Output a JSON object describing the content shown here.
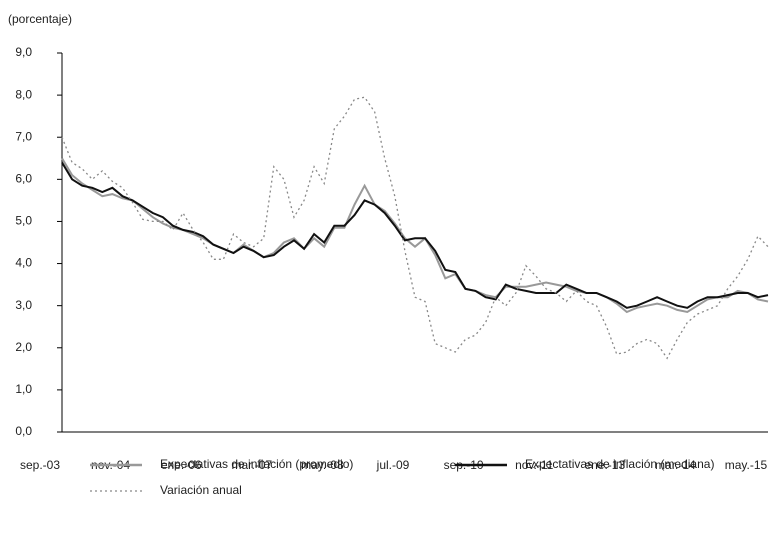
{
  "chart_data": {
    "type": "line",
    "y_label": "(porcentaje)",
    "categories": [
      "sep.-03",
      null,
      null,
      null,
      null,
      null,
      null,
      "nov.-04",
      null,
      null,
      null,
      null,
      null,
      null,
      "ene.-06",
      null,
      null,
      null,
      null,
      null,
      null,
      "mar.-07",
      null,
      null,
      null,
      null,
      null,
      null,
      "may.-08",
      null,
      null,
      null,
      null,
      null,
      null,
      "jul.-09",
      null,
      null,
      null,
      null,
      null,
      null,
      "sep.-10",
      null,
      null,
      null,
      null,
      null,
      null,
      "nov.-11",
      null,
      null,
      null,
      null,
      null,
      null,
      "ene.-13",
      null,
      null,
      null,
      null,
      null,
      null,
      "mar.-14",
      null,
      null,
      null,
      null,
      null,
      null,
      "may.-15"
    ],
    "series": [
      {
        "name": "Expectativas de inflación (promedio)",
        "color": "#999999",
        "line_style": "solid",
        "values": [
          6.5,
          6.1,
          5.9,
          5.75,
          5.6,
          5.65,
          5.55,
          5.5,
          5.3,
          5.1,
          4.95,
          4.85,
          4.8,
          4.7,
          4.6,
          4.45,
          4.35,
          4.25,
          4.45,
          4.3,
          4.15,
          4.25,
          4.5,
          4.6,
          4.35,
          4.6,
          4.4,
          4.85,
          4.85,
          5.4,
          5.85,
          5.4,
          5.25,
          4.95,
          4.6,
          4.4,
          4.6,
          4.2,
          3.65,
          3.75,
          3.4,
          3.35,
          3.25,
          3.2,
          3.45,
          3.45,
          3.45,
          3.5,
          3.55,
          3.5,
          3.45,
          3.35,
          3.3,
          3.3,
          3.2,
          3.05,
          2.85,
          2.95,
          3.0,
          3.05,
          3.0,
          2.9,
          2.85,
          3.0,
          3.15,
          3.2,
          3.2,
          3.35,
          3.3,
          3.15,
          3.1
        ]
      },
      {
        "name": "Expectativas de inflación (mediana)",
        "color": "#111111",
        "line_style": "solid",
        "values": [
          6.4,
          6.0,
          5.85,
          5.8,
          5.7,
          5.8,
          5.6,
          5.5,
          5.35,
          5.2,
          5.1,
          4.9,
          4.8,
          4.75,
          4.65,
          4.45,
          4.35,
          4.25,
          4.4,
          4.3,
          4.15,
          4.2,
          4.4,
          4.55,
          4.35,
          4.7,
          4.5,
          4.9,
          4.9,
          5.15,
          5.5,
          5.4,
          5.2,
          4.9,
          4.55,
          4.6,
          4.6,
          4.3,
          3.85,
          3.8,
          3.4,
          3.35,
          3.2,
          3.15,
          3.5,
          3.4,
          3.35,
          3.3,
          3.3,
          3.3,
          3.5,
          3.4,
          3.3,
          3.3,
          3.2,
          3.1,
          2.95,
          3.0,
          3.1,
          3.2,
          3.1,
          3.0,
          2.95,
          3.1,
          3.2,
          3.2,
          3.25,
          3.3,
          3.3,
          3.2,
          3.25
        ]
      },
      {
        "name": "Variación anual",
        "color": "#888888",
        "line_style": "dotted",
        "values": [
          7.0,
          6.4,
          6.25,
          6.0,
          6.2,
          5.95,
          5.8,
          5.45,
          5.05,
          5.0,
          5.0,
          4.8,
          5.2,
          4.8,
          4.5,
          4.1,
          4.1,
          4.7,
          4.5,
          4.4,
          4.6,
          6.3,
          6.0,
          5.1,
          5.5,
          6.3,
          5.9,
          7.2,
          7.5,
          7.9,
          7.95,
          7.6,
          6.5,
          5.6,
          4.3,
          3.2,
          3.1,
          2.1,
          2.0,
          1.9,
          2.2,
          2.3,
          2.6,
          3.2,
          3.0,
          3.3,
          3.95,
          3.7,
          3.4,
          3.3,
          3.1,
          3.35,
          3.1,
          3.0,
          2.5,
          1.85,
          1.9,
          2.1,
          2.2,
          2.1,
          1.75,
          2.2,
          2.6,
          2.8,
          2.9,
          3.0,
          3.4,
          3.7,
          4.1,
          4.65,
          4.4
        ]
      }
    ],
    "ylim": [
      0,
      9
    ],
    "yticks": [
      {
        "value": 0,
        "label": "0,0"
      },
      {
        "value": 1,
        "label": "1,0"
      },
      {
        "value": 2,
        "label": "2,0"
      },
      {
        "value": 3,
        "label": "3,0"
      },
      {
        "value": 4,
        "label": "4,0"
      },
      {
        "value": 5,
        "label": "5,0"
      },
      {
        "value": 6,
        "label": "6,0"
      },
      {
        "value": 7,
        "label": "7,0"
      },
      {
        "value": 8,
        "label": "8,0"
      },
      {
        "value": 9,
        "label": "9,0"
      }
    ],
    "grid": false,
    "legend": "bottom"
  }
}
